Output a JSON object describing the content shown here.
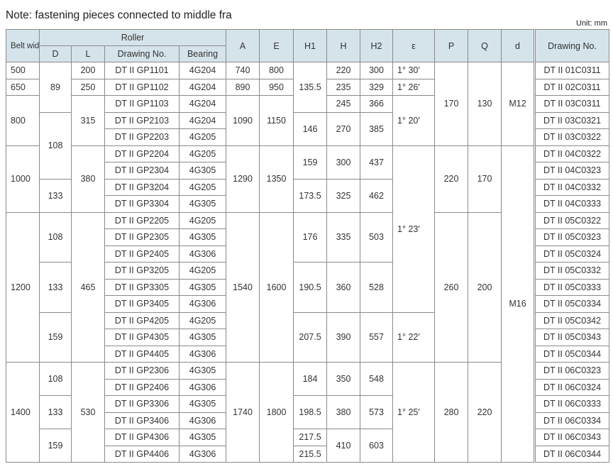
{
  "note": "Note: fastening pieces connected to middle fra",
  "unit": "Unit: mm",
  "header": {
    "belt_width": "Belt width B",
    "roller": "Roller",
    "D": "D",
    "L": "L",
    "roller_drawing": "Drawing No.",
    "bearing": "Bearing",
    "A": "A",
    "E": "E",
    "H1": "H1",
    "H": "H",
    "H2": "H2",
    "epsilon": "ε",
    "P": "P",
    "Q": "Q",
    "d": "d",
    "drawing_no": "Drawing No."
  },
  "rows": [
    [
      "500",
      "89",
      "200",
      "DT II GP1101",
      "4G204",
      "740",
      "800",
      "135.5",
      "220",
      "300",
      "1°  30′",
      "170",
      "130",
      "M12",
      "DT II 01C0311"
    ],
    [
      "650",
      "250",
      "DT II GP1102",
      "4G204",
      "890",
      "950",
      "235",
      "329",
      "1°  26′",
      "DT II 02C0311"
    ],
    [
      "800",
      "315",
      "DT II GP1103",
      "4G204",
      "1090",
      "1150",
      "245",
      "366",
      "1°  20′",
      "DT II 03C0311"
    ],
    [
      "108",
      "DT II GP2103",
      "4G204",
      "146",
      "270",
      "385",
      "DT II 03C0321"
    ],
    [
      "DT II GP2203",
      "4G205",
      "DT II 03C0322"
    ],
    [
      "1000",
      "380",
      "DT II GP2204",
      "4G205",
      "1290",
      "1350",
      "159",
      "300",
      "437",
      "1°  23′",
      "220",
      "170",
      "M16",
      "DT II 04C0322"
    ],
    [
      "DT II GP2304",
      "4G305",
      "DT II 04C0323"
    ],
    [
      "133",
      "DT II GP3204",
      "4G205",
      "173.5",
      "325",
      "462",
      "DT II 04C0332"
    ],
    [
      "DT II GP3304",
      "4G305",
      "DT II 04C0333"
    ],
    [
      "1200",
      "108",
      "465",
      "DT II GP2205",
      "4G205",
      "1540",
      "1600",
      "176",
      "335",
      "503",
      "260",
      "200",
      "DT II 05C0322"
    ],
    [
      "DT II GP2305",
      "4G305",
      "DT II 05C0323"
    ],
    [
      "DT II GP2405",
      "4G306",
      "DT II 05C0324"
    ],
    [
      "133",
      "DT II GP3205",
      "4G205",
      "190.5",
      "360",
      "528",
      "DT II 05C0332"
    ],
    [
      "DT II GP3305",
      "4G305",
      "DT II 05C0333"
    ],
    [
      "DT II GP3405",
      "4G306",
      "DT II 05C0334"
    ],
    [
      "159",
      "DT II GP4205",
      "4G205",
      "207.5",
      "390",
      "557",
      "1°  22′",
      "DT II 05C0342"
    ],
    [
      "DT II GP4305",
      "4G305",
      "DT II 05C0343"
    ],
    [
      "DT II GP4405",
      "4G306",
      "DT II 05C0344"
    ],
    [
      "1400",
      "108",
      "530",
      "DT II GP2306",
      "4G305",
      "1740",
      "1800",
      "184",
      "350",
      "548",
      "1°  25′",
      "280",
      "220",
      "DT II 06C0323"
    ],
    [
      "DT II GP2406",
      "4G306",
      "DT II 06C0324"
    ],
    [
      "133",
      "DT II GP3306",
      "4G305",
      "198.5",
      "380",
      "573",
      "DT II 06C0333"
    ],
    [
      "DT II GP3406",
      "4G306",
      "DT II 06C0334"
    ],
    [
      "159",
      "DT II GP4306",
      "4G305",
      "217.5",
      "410",
      "603",
      "DT II 06C0343"
    ],
    [
      "DT II GP4406",
      "4G306",
      "215.5",
      "DT II 06C0344"
    ]
  ]
}
